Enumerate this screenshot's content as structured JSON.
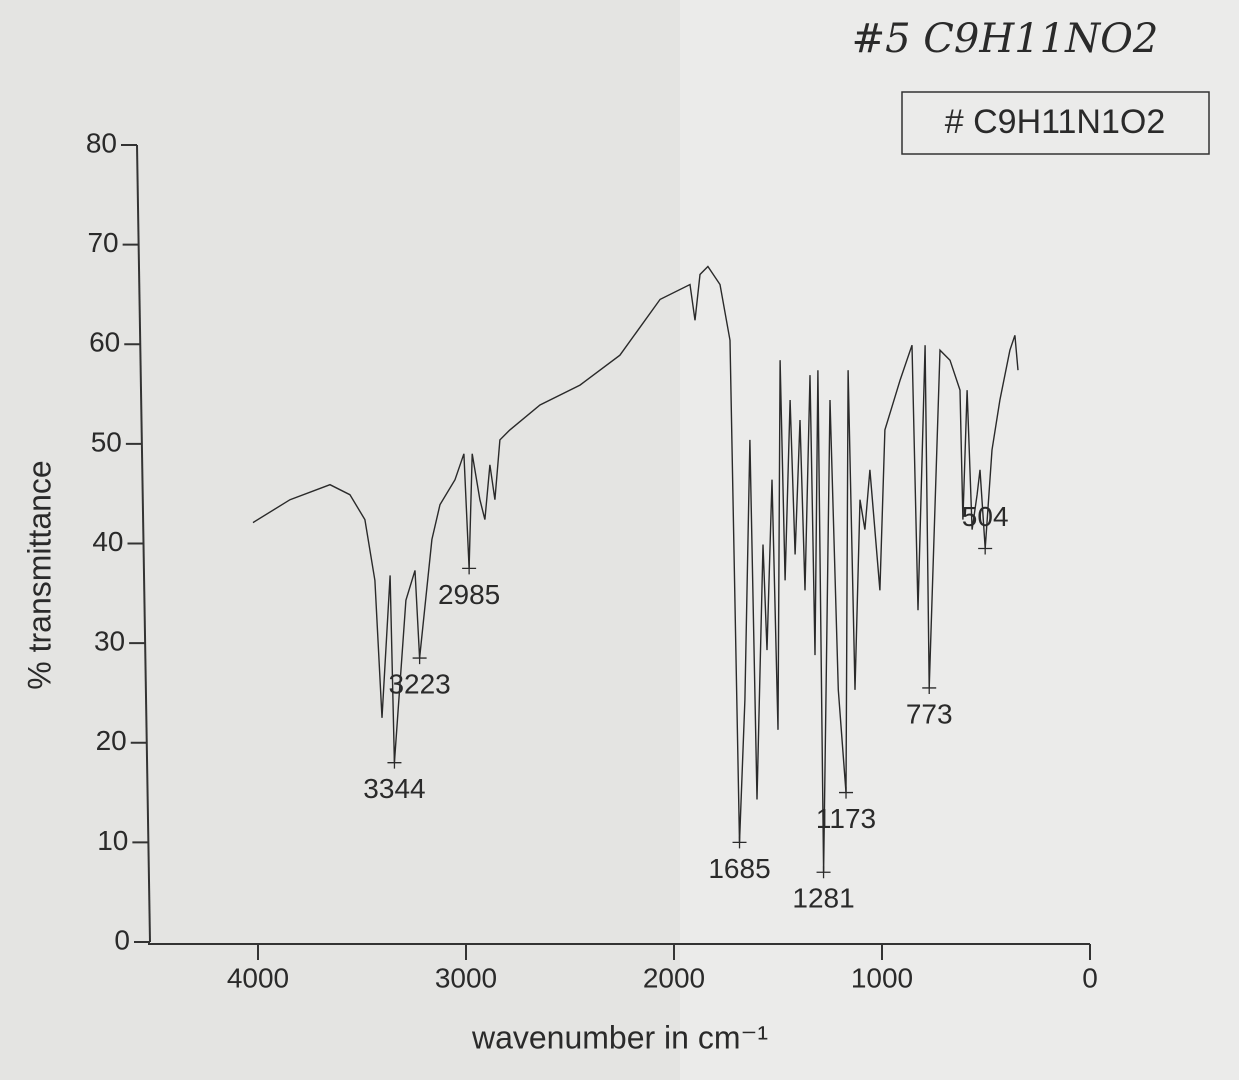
{
  "chart_data": {
    "type": "line",
    "title": "#5 C9H11NO2",
    "subtitle": "# C9H11N1O2",
    "xlabel": "wavenumber in cm⁻¹",
    "ylabel": "% transmittance",
    "xlim": [
      4500,
      0
    ],
    "xticks": [
      4000,
      3000,
      2000,
      1000,
      0
    ],
    "ylim": [
      0,
      80
    ],
    "yticks": [
      0,
      10,
      20,
      30,
      40,
      50,
      60,
      70,
      80
    ],
    "x": [
      4024,
      3846,
      3654,
      3558,
      3486,
      3438,
      3404,
      3365,
      3344,
      3289,
      3245,
      3223,
      3164,
      3125,
      3053,
      3010,
      2985,
      2970,
      2933,
      2909,
      2885,
      2861,
      2837,
      2789,
      2644,
      2452,
      2260,
      2067,
      1923,
      1899,
      1875,
      1837,
      1779,
      1731,
      1685,
      1659,
      1635,
      1601,
      1572,
      1553,
      1529,
      1500,
      1490,
      1466,
      1442,
      1418,
      1394,
      1370,
      1346,
      1322,
      1308,
      1281,
      1250,
      1210,
      1173,
      1163,
      1130,
      1106,
      1082,
      1058,
      1010,
      986,
      913,
      856,
      827,
      793,
      773,
      721,
      673,
      625,
      611,
      591,
      567,
      543,
      529,
      504,
      471,
      433,
      385,
      361,
      346
    ],
    "series": [
      {
        "color": "#2a2a2a",
        "values": [
          42.1,
          44.4,
          45.9,
          44.9,
          42.4,
          36.3,
          22.5,
          36.8,
          18,
          34.3,
          37.3,
          28.5,
          40.4,
          43.9,
          46.4,
          49,
          37.5,
          49,
          44.4,
          42.4,
          47.9,
          44.4,
          50.4,
          51.4,
          53.9,
          55.9,
          58.9,
          64.5,
          66,
          62.4,
          67,
          67.8,
          66,
          60.4,
          10,
          24.3,
          50.4,
          14.3,
          39.9,
          29.3,
          46.4,
          21.3,
          58.4,
          36.3,
          54.4,
          38.9,
          52.4,
          35.3,
          56.9,
          28.8,
          57.4,
          7,
          54.4,
          25.3,
          15,
          57.4,
          25.3,
          44.4,
          41.4,
          47.4,
          35.3,
          51.4,
          56.4,
          59.9,
          33.3,
          59.9,
          25.5,
          59.4,
          58.4,
          55.4,
          42.4,
          55.4,
          41.4,
          44.9,
          47.4,
          39.5,
          49.4,
          54.4,
          59.4,
          60.9,
          57.4
        ]
      }
    ],
    "peaks": [
      {
        "x": 3344,
        "y": 18
      },
      {
        "x": 3223,
        "y": 28.5
      },
      {
        "x": 2985,
        "y": 37.5
      },
      {
        "x": 1685,
        "y": 10
      },
      {
        "x": 1281,
        "y": 7
      },
      {
        "x": 1173,
        "y": 15
      },
      {
        "x": 773,
        "y": 25.5
      },
      {
        "x": 504,
        "y": 39.5
      }
    ]
  }
}
